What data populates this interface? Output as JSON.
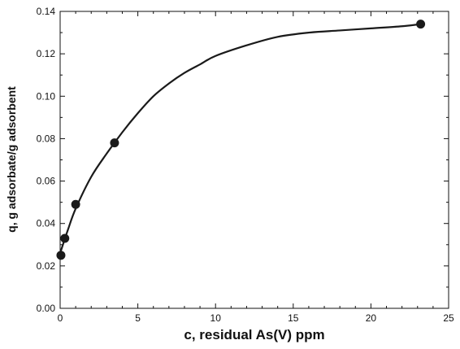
{
  "chart_data": {
    "type": "scatter",
    "title": "",
    "xlabel": "c, residual As(V) ppm",
    "ylabel": "q, g adsorbate/g adsorbent",
    "xlim": [
      0,
      25
    ],
    "ylim": [
      0,
      0.14
    ],
    "x_ticks": [
      "0",
      "5",
      "10",
      "15",
      "20",
      "25"
    ],
    "y_ticks": [
      "0.00",
      "0.02",
      "0.04",
      "0.06",
      "0.08",
      "0.10",
      "0.12",
      "0.14"
    ],
    "grid": false,
    "legend": "none",
    "series": [
      {
        "kind": "points",
        "x": [
          0.05,
          0.3,
          1.0,
          3.5,
          23.2
        ],
        "y": [
          0.025,
          0.033,
          0.049,
          0.078,
          0.134
        ]
      },
      {
        "kind": "fitted-curve",
        "x": [
          0,
          0.5,
          1,
          2,
          3,
          4,
          5,
          6,
          7,
          8,
          9,
          10,
          12,
          14,
          16,
          18,
          20,
          22,
          23.2
        ],
        "y": [
          0.026,
          0.037,
          0.047,
          0.062,
          0.073,
          0.083,
          0.092,
          0.1,
          0.106,
          0.111,
          0.115,
          0.119,
          0.124,
          0.128,
          0.13,
          0.131,
          0.132,
          0.133,
          0.134
        ]
      }
    ],
    "colors": {
      "markers": "#1a1a1a",
      "curve": "#1a1a1a",
      "axes": "#111111"
    }
  }
}
